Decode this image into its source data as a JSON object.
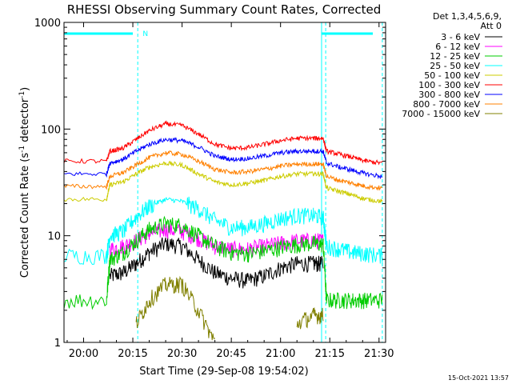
{
  "chart_data": {
    "type": "line",
    "title": "RHESSI Observing Summary Count Rates, Corrected",
    "xlabel": "Start Time (29-Sep-08 19:54:02)",
    "ylabel": "Corrected Count Rate (s",
    "ylabel_unit": "detector",
    "ylabel_exp": "-1",
    "yscale": "log",
    "ylim": [
      1,
      1000
    ],
    "xlim": [
      "19:54:02",
      "21:32:00"
    ],
    "x_ticks": [
      "20:00",
      "20:15",
      "20:30",
      "20:45",
      "21:00",
      "21:15",
      "21:30"
    ],
    "y_ticks": [
      "1",
      "10",
      "100",
      "1000"
    ],
    "legend_header": [
      "Det 1,3,4,5,6,9,",
      "Att 0"
    ],
    "legend_position": "right",
    "timestamp": "15-Oct-2021 13:57",
    "night_label": "N",
    "x": [
      "19:54",
      "20:07",
      "20:08",
      "20:12",
      "20:16",
      "20:20",
      "20:25",
      "20:30",
      "20:35",
      "20:40",
      "20:45",
      "20:50",
      "20:55",
      "21:00",
      "21:05",
      "21:10",
      "21:13",
      "21:14",
      "21:18",
      "21:22",
      "21:26",
      "21:31"
    ],
    "series": [
      {
        "name": "3 - 6 keV",
        "color": "#000000",
        "values": [
          null,
          null,
          4.2,
          4.5,
          5.5,
          7,
          8.5,
          8,
          6,
          4.5,
          4,
          3.8,
          4.2,
          5,
          5.5,
          5.5,
          5.5,
          null,
          null,
          null,
          null,
          null
        ]
      },
      {
        "name": "6 - 12 keV",
        "color": "#ff00ff",
        "values": [
          null,
          null,
          7.5,
          8,
          9,
          10.5,
          11.5,
          11,
          9.5,
          8,
          7.5,
          7.5,
          8,
          8.5,
          9,
          9,
          9,
          null,
          null,
          null,
          null,
          null
        ]
      },
      {
        "name": "12 - 25 keV",
        "color": "#00cc00",
        "values": [
          2.5,
          2.5,
          6,
          7,
          9,
          11.5,
          13,
          12.5,
          10,
          8,
          7,
          6.8,
          7.2,
          7.8,
          8.3,
          8.5,
          8.3,
          2.5,
          2.5,
          2.5,
          2.5,
          2.5
        ]
      },
      {
        "name": "25 - 50 keV",
        "color": "#00ffff",
        "values": [
          6.5,
          6.5,
          10,
          11,
          15,
          19,
          22,
          21,
          18,
          14,
          12,
          12,
          13,
          14.5,
          15.5,
          15.5,
          15,
          8,
          7.5,
          7,
          6.8,
          6.5
        ]
      },
      {
        "name": "50 - 100 keV",
        "color": "#cccc00",
        "values": [
          22,
          22,
          30,
          32,
          38,
          44,
          48,
          46,
          38,
          32,
          30,
          31,
          33,
          36,
          38,
          38,
          38,
          28,
          26,
          24,
          22,
          21
        ]
      },
      {
        "name": "100 - 300 keV",
        "color": "#ff0000",
        "values": [
          50,
          50,
          62,
          66,
          80,
          97,
          112,
          108,
          90,
          72,
          66,
          67,
          72,
          78,
          82,
          82,
          82,
          62,
          58,
          54,
          50,
          48
        ]
      },
      {
        "name": "300 - 800 keV",
        "color": "#0000ff",
        "values": [
          38,
          38,
          48,
          52,
          62,
          72,
          80,
          78,
          68,
          56,
          52,
          53,
          56,
          60,
          62,
          62,
          62,
          48,
          44,
          41,
          38,
          36
        ]
      },
      {
        "name": "800 - 7000 keV",
        "color": "#ff8000",
        "values": [
          29,
          29,
          36,
          39,
          46,
          54,
          60,
          58,
          50,
          42,
          39,
          40,
          42,
          45,
          47,
          47,
          47,
          36,
          33,
          31,
          29,
          28
        ]
      },
      {
        "name": "7000 - 15000 keV",
        "color": "#808000",
        "values": [
          null,
          null,
          null,
          null,
          1.5,
          2.5,
          3.5,
          3.5,
          2,
          1,
          null,
          null,
          null,
          null,
          1.5,
          1.8,
          1.8,
          null,
          null,
          null,
          null,
          null
        ]
      }
    ]
  }
}
